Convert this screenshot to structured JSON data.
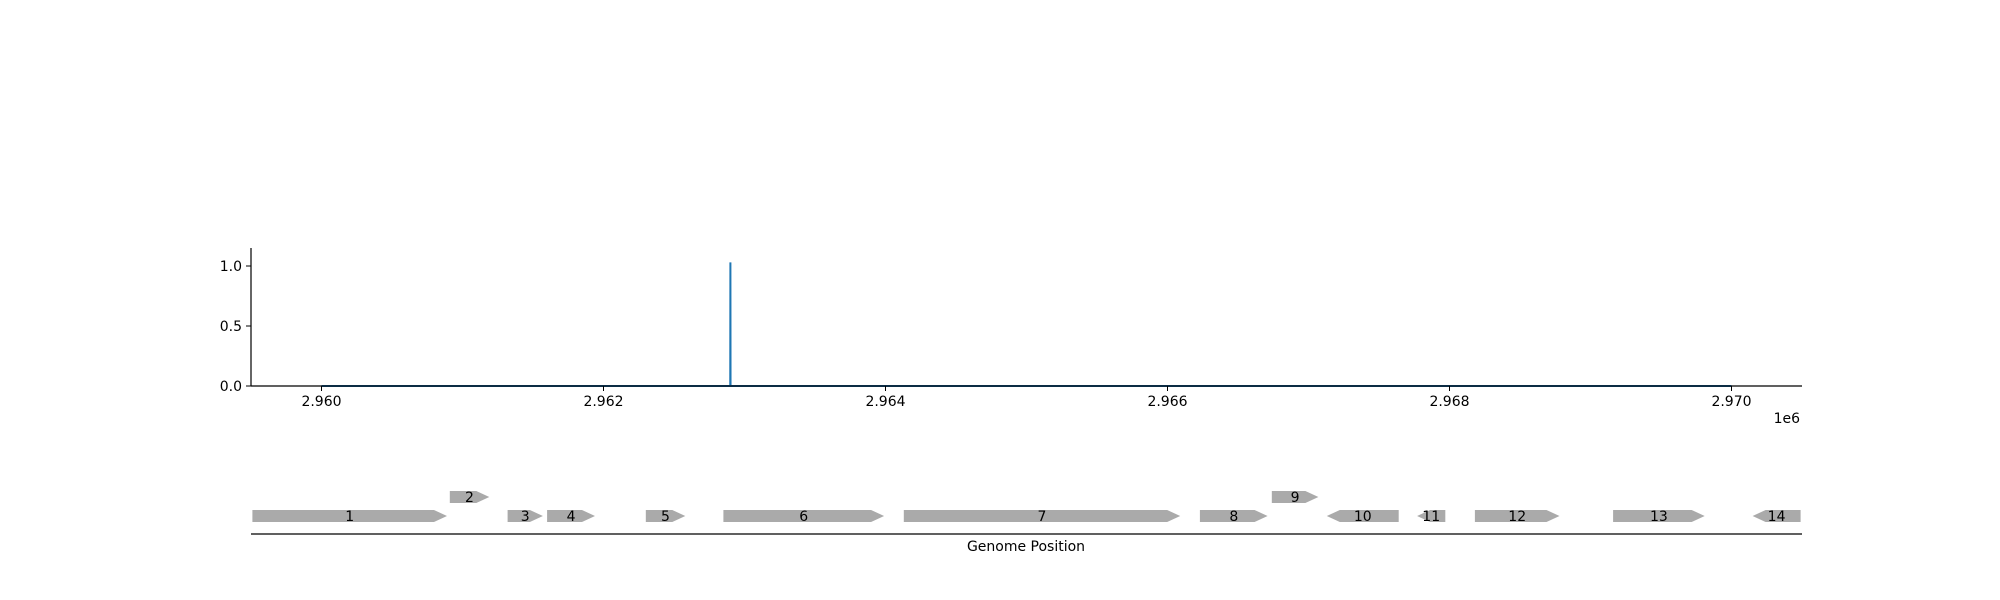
{
  "chart_data": [
    {
      "type": "line",
      "x_range": [
        2959500,
        2970500
      ],
      "ylim": [
        0,
        1.15
      ],
      "x_ticks": [
        2960000,
        2962000,
        2964000,
        2966000,
        2968000,
        2970000
      ],
      "x_tick_labels": [
        "2.960",
        "2.962",
        "2.964",
        "2.966",
        "2.968",
        "2.970"
      ],
      "x_offset_label": "1e6",
      "y_ticks": [
        0.0,
        0.5,
        1.0
      ],
      "y_tick_labels": [
        "0.0",
        "0.5",
        "1.0"
      ],
      "series": [
        {
          "color": "#1f77b4",
          "points": [
            [
              2960000,
              0
            ],
            [
              2962899,
              0
            ],
            [
              2962900,
              1.03
            ],
            [
              2962901,
              0
            ],
            [
              2970000,
              0
            ]
          ]
        }
      ]
    },
    {
      "type": "gene_track",
      "xlabel": "Genome Position",
      "x_range": [
        2959500,
        2970500
      ],
      "gene_color": "#aaaaaa",
      "genes": [
        {
          "label": "1",
          "start": 2959510,
          "end": 2960890,
          "strand": "+",
          "row": 0
        },
        {
          "label": "2",
          "start": 2960910,
          "end": 2961190,
          "strand": "+",
          "row": 1
        },
        {
          "label": "3",
          "start": 2961320,
          "end": 2961570,
          "strand": "+",
          "row": 0
        },
        {
          "label": "4",
          "start": 2961600,
          "end": 2961940,
          "strand": "+",
          "row": 0
        },
        {
          "label": "5",
          "start": 2962300,
          "end": 2962580,
          "strand": "+",
          "row": 0
        },
        {
          "label": "6",
          "start": 2962850,
          "end": 2963990,
          "strand": "+",
          "row": 0
        },
        {
          "label": "7",
          "start": 2964130,
          "end": 2966090,
          "strand": "+",
          "row": 0
        },
        {
          "label": "8",
          "start": 2966230,
          "end": 2966710,
          "strand": "+",
          "row": 0
        },
        {
          "label": "9",
          "start": 2966740,
          "end": 2967070,
          "strand": "+",
          "row": 1
        },
        {
          "label": "10",
          "start": 2967130,
          "end": 2967640,
          "strand": "-",
          "row": 0
        },
        {
          "label": "11",
          "start": 2967770,
          "end": 2967970,
          "strand": "-",
          "row": 0
        },
        {
          "label": "12",
          "start": 2968180,
          "end": 2968780,
          "strand": "+",
          "row": 0
        },
        {
          "label": "13",
          "start": 2969160,
          "end": 2969810,
          "strand": "+",
          "row": 0
        },
        {
          "label": "14",
          "start": 2970150,
          "end": 2970490,
          "strand": "-",
          "row": 0
        }
      ]
    }
  ]
}
